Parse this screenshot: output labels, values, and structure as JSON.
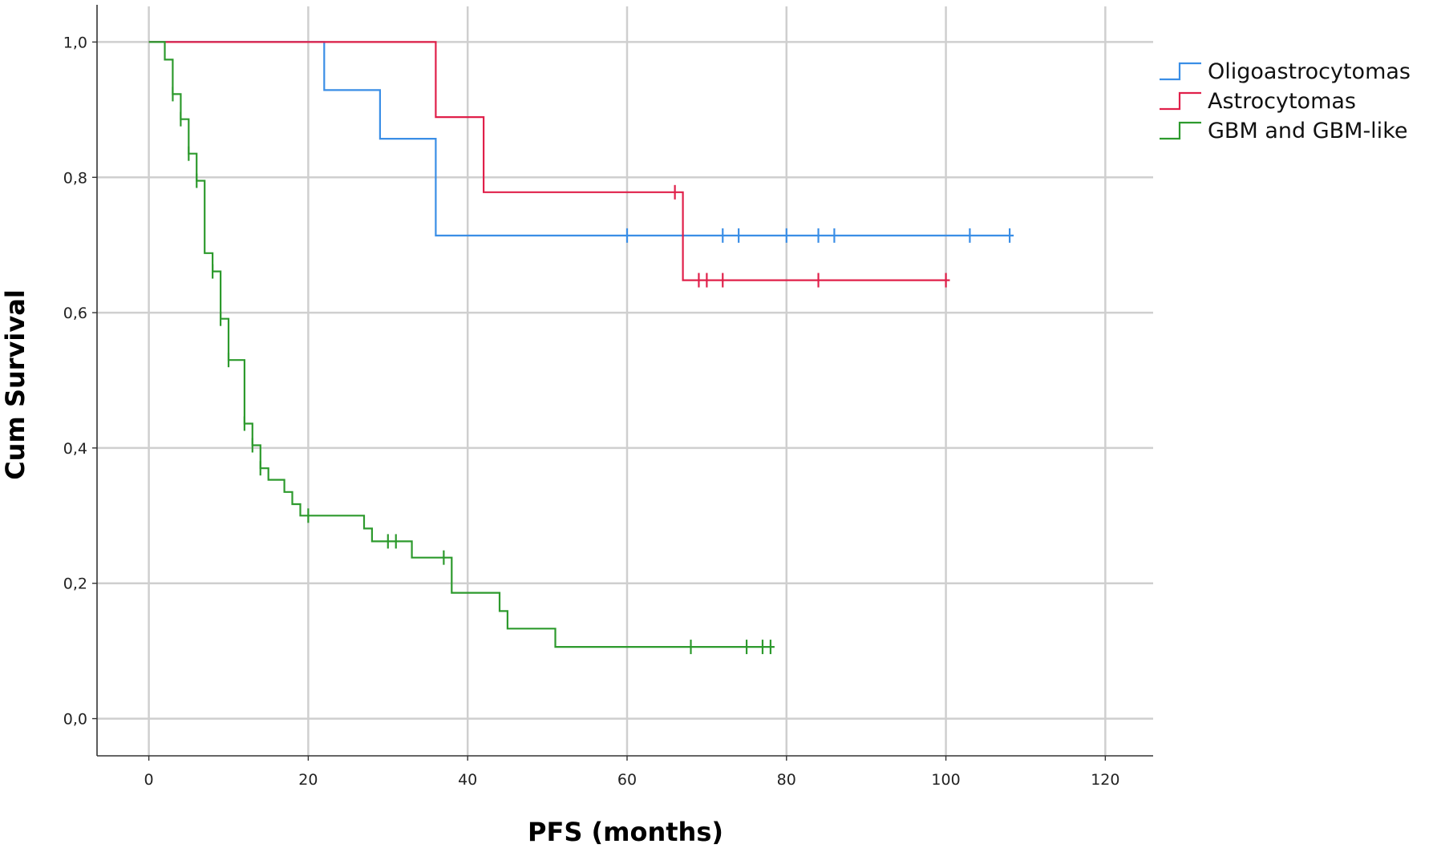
{
  "chart_data": {
    "type": "line",
    "subtype": "kaplan-meier",
    "title": "",
    "xlabel": "PFS (months)",
    "ylabel": "Cum Survival",
    "xlim": [
      -6.5,
      126
    ],
    "ylim": [
      -0.055,
      1.055
    ],
    "xticks": [
      0,
      20,
      40,
      60,
      80,
      100,
      120
    ],
    "yticks": [
      0.0,
      0.2,
      0.4,
      0.6,
      0.8,
      1.0
    ],
    "xtick_labels": [
      "0",
      "20",
      "40",
      "60",
      "80",
      "100",
      "120"
    ],
    "ytick_labels": [
      "0,0",
      "0,2",
      "0,4",
      "0,6",
      "0,8",
      "1,0"
    ],
    "grid": true,
    "legend_position": "top-right",
    "series": [
      {
        "name": "Oligoastrocytomas",
        "color": "#3a8ee6",
        "steps": [
          [
            0,
            1.0
          ],
          [
            22,
            0.929
          ],
          [
            29,
            0.857
          ],
          [
            36,
            0.714
          ],
          [
            108.5,
            0.714
          ]
        ],
        "censored": [
          [
            60,
            0.714
          ],
          [
            72,
            0.714
          ],
          [
            74,
            0.714
          ],
          [
            80,
            0.714
          ],
          [
            84,
            0.714
          ],
          [
            86,
            0.714
          ],
          [
            103,
            0.714
          ],
          [
            108,
            0.714
          ]
        ]
      },
      {
        "name": "Astrocytomas",
        "color": "#e0204a",
        "steps": [
          [
            0,
            1.0
          ],
          [
            36,
            0.889
          ],
          [
            42,
            0.778
          ],
          [
            67,
            0.648
          ],
          [
            100.5,
            0.648
          ]
        ],
        "censored": [
          [
            66,
            0.778
          ],
          [
            69,
            0.648
          ],
          [
            70,
            0.648
          ],
          [
            72,
            0.648
          ],
          [
            84,
            0.648
          ],
          [
            100,
            0.648
          ]
        ]
      },
      {
        "name": "GBM and GBM-like",
        "color": "#2d9a2d",
        "steps": [
          [
            0,
            1.0
          ],
          [
            2,
            0.974
          ],
          [
            3,
            0.923
          ],
          [
            4,
            0.886
          ],
          [
            5,
            0.835
          ],
          [
            6,
            0.795
          ],
          [
            7,
            0.688
          ],
          [
            8,
            0.661
          ],
          [
            9,
            0.591
          ],
          [
            10,
            0.53
          ],
          [
            12,
            0.436
          ],
          [
            13,
            0.404
          ],
          [
            14,
            0.37
          ],
          [
            15,
            0.353
          ],
          [
            17,
            0.335
          ],
          [
            18,
            0.317
          ],
          [
            19,
            0.3
          ],
          [
            27,
            0.281
          ],
          [
            28,
            0.262
          ],
          [
            33,
            0.238
          ],
          [
            38,
            0.186
          ],
          [
            44,
            0.159
          ],
          [
            45,
            0.133
          ],
          [
            51,
            0.106
          ],
          [
            78.5,
            0.106
          ]
        ],
        "censored": [
          [
            3,
            0.923
          ],
          [
            4,
            0.886
          ],
          [
            5,
            0.835
          ],
          [
            6,
            0.795
          ],
          [
            8,
            0.661
          ],
          [
            9,
            0.591
          ],
          [
            10,
            0.53
          ],
          [
            12,
            0.436
          ],
          [
            13,
            0.404
          ],
          [
            14,
            0.37
          ],
          [
            20,
            0.3
          ],
          [
            30,
            0.262
          ],
          [
            31,
            0.262
          ],
          [
            37,
            0.238
          ],
          [
            68,
            0.106
          ],
          [
            75,
            0.106
          ],
          [
            77,
            0.106
          ],
          [
            78,
            0.106
          ]
        ]
      }
    ]
  }
}
